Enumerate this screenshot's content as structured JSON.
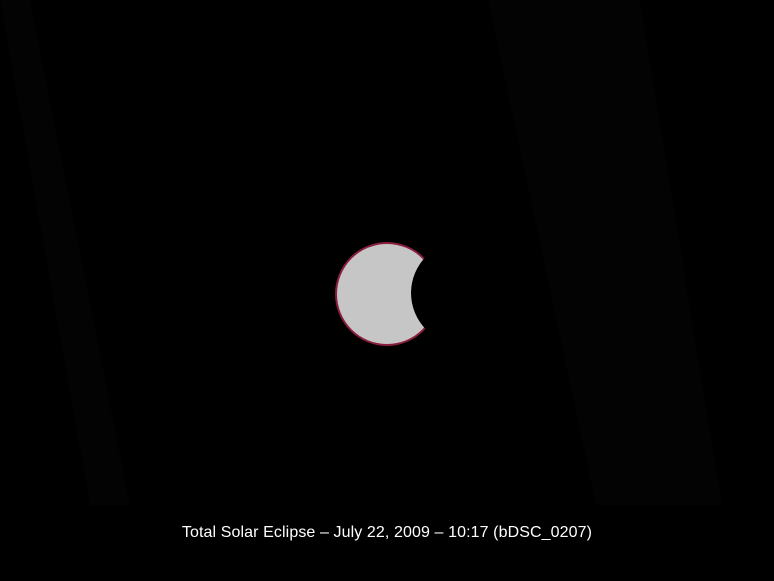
{
  "photo": {
    "caption": "Total Solar Eclipse – July 22, 2009 – 10:17 (bDSC_0207)",
    "colors": {
      "sky": "#000000",
      "sun_disc": "#c6c6c6",
      "sun_limb": "#8a1e3c",
      "moon": "#000000",
      "faint_streak": "#0a0a0a"
    }
  }
}
